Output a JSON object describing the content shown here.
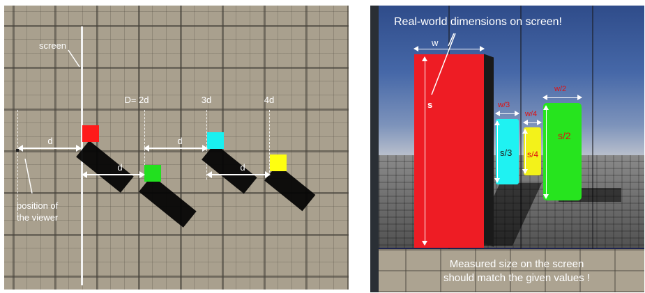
{
  "left_panel": {
    "labels": {
      "screen": "screen",
      "distance_total": "D= 2d",
      "marker_3d": "3d",
      "marker_4d": "4d",
      "d_viewer": "d",
      "d_green": "d",
      "d_cyan": "d",
      "d_yellow": "d",
      "viewer_line1": "position of",
      "viewer_line2": "the viewer"
    },
    "cubes": [
      {
        "name": "red",
        "color": "#ff1a1a"
      },
      {
        "name": "green",
        "color": "#22e01f"
      },
      {
        "name": "cyan",
        "color": "#19f0f0"
      },
      {
        "name": "yellow",
        "color": "#ffff10"
      }
    ]
  },
  "right_panel": {
    "title": "Real-world dimensions on screen!",
    "labels": {
      "w": "w",
      "s": "s",
      "w3": "w/3",
      "s3": "s/3",
      "w4": "w/4",
      "s4": "s/4",
      "w2": "w/2",
      "s2": "s/2"
    },
    "bottom_line1": "Measured size on the screen",
    "bottom_line2": "should match the given values !",
    "colors": {
      "red": "#ee1c24",
      "cyan": "#1ff2f2",
      "yellow": "#f3f21a",
      "green": "#26e41e",
      "label_red": "#e01010"
    }
  }
}
